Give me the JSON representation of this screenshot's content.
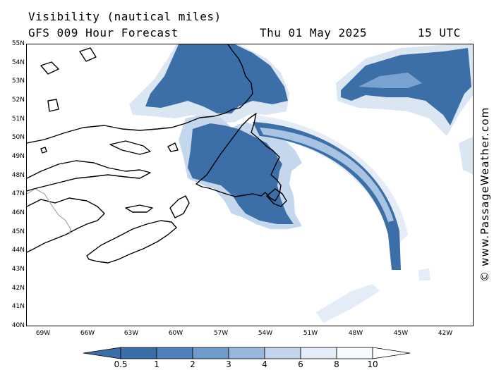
{
  "header": {
    "title": "Visibility (nautical miles)",
    "subtitle": "GFS 009 Hour Forecast",
    "date": "Thu 01 May 2025",
    "time": "15 UTC"
  },
  "credit": "© www.PassageWeather.com",
  "map": {
    "region": "Newfoundland, Nova Scotia and NW Atlantic",
    "lat_labels": [
      "55N",
      "54N",
      "53N",
      "52N",
      "51N",
      "50N",
      "49N",
      "48N",
      "47N",
      "46N",
      "45N",
      "44N",
      "43N",
      "42N",
      "41N",
      "40N"
    ],
    "lon_labels": [
      "69W",
      "66W",
      "63W",
      "60W",
      "57W",
      "54W",
      "51W",
      "48W",
      "45W",
      "42W"
    ],
    "land_outline_color": "#000000"
  },
  "legend": {
    "levels": [
      "0.5",
      "1",
      "2",
      "3",
      "4",
      "6",
      "8",
      "10"
    ],
    "colors": [
      "#3a6ea8",
      "#4f81bb",
      "#6f9acc",
      "#97b8dd",
      "#c0d4ec",
      "#e3ecf7",
      "#f7fafd",
      "#ffffff"
    ]
  }
}
